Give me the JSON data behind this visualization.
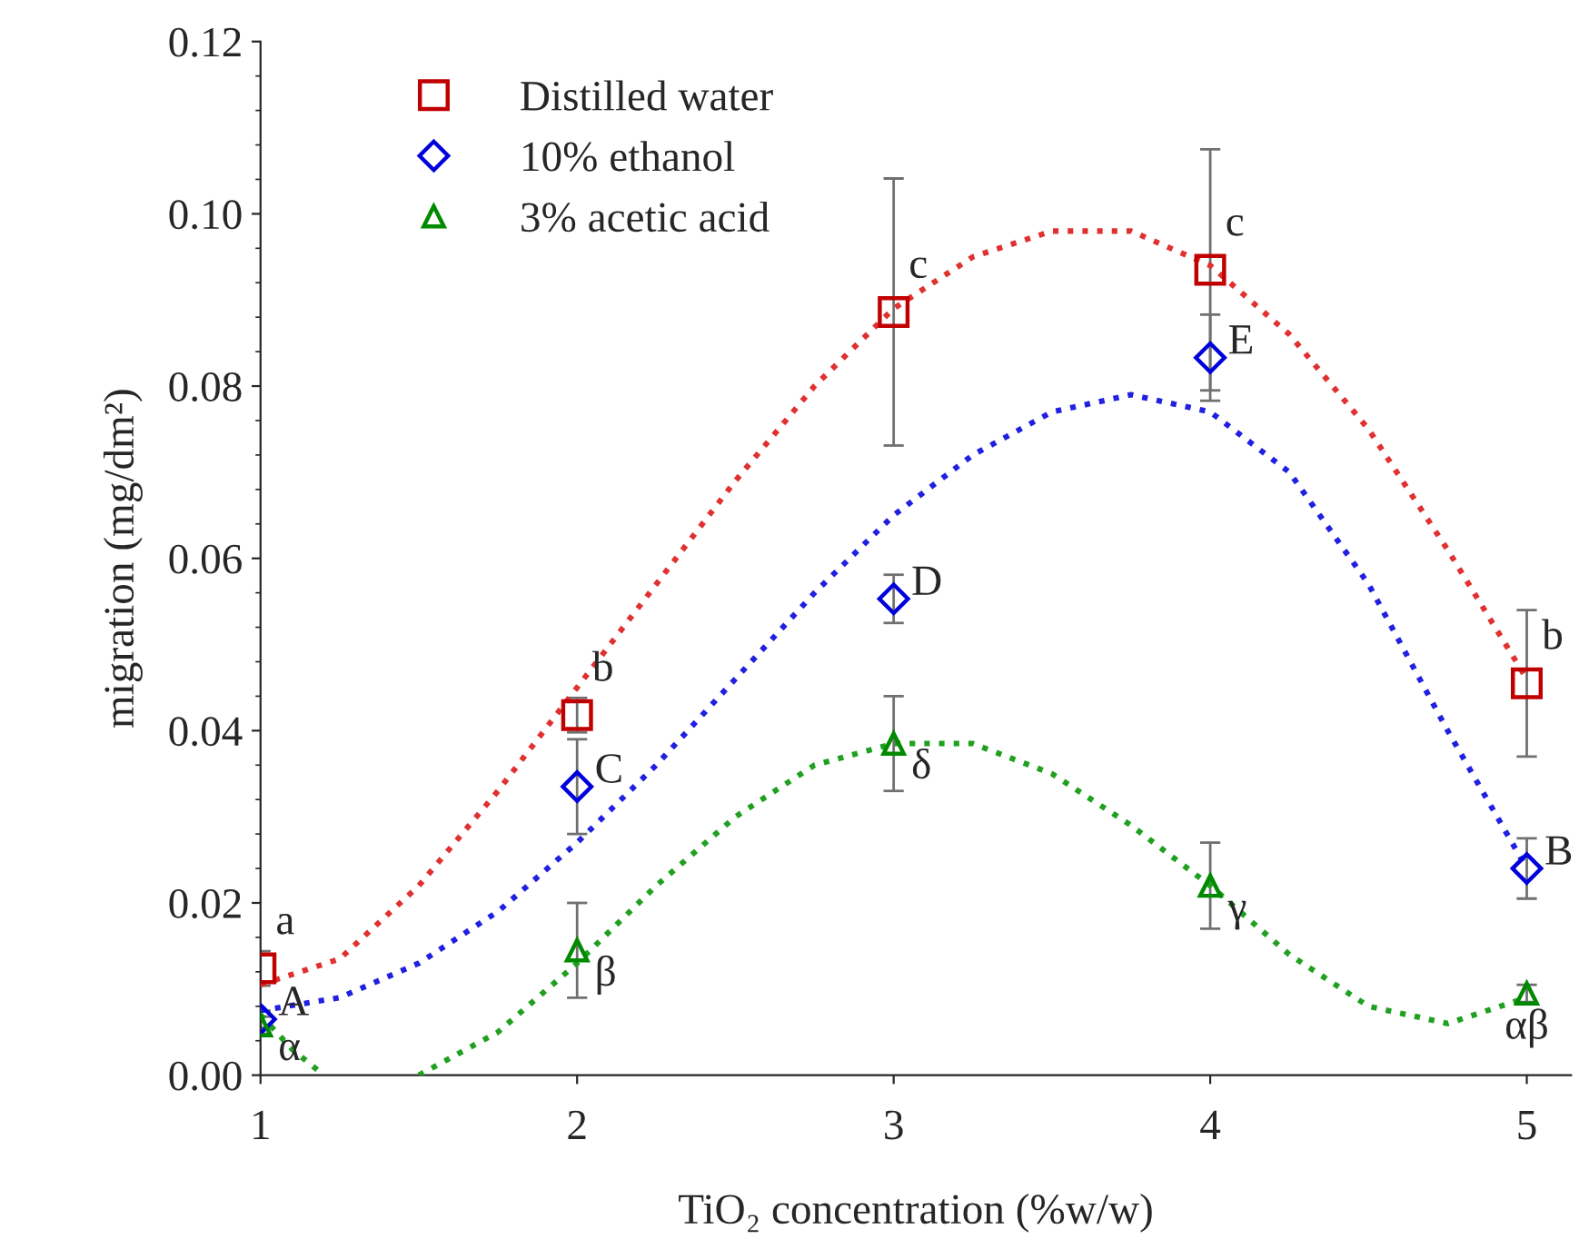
{
  "chart_data": {
    "type": "scatter",
    "xlabel": "TiO₂ concentration (%w/w)",
    "ylabel": "migration (mg/dm²)",
    "x": [
      1,
      2,
      3,
      4,
      5
    ],
    "xlim": [
      1,
      5.14
    ],
    "xticks": [
      1,
      2,
      3,
      4,
      5
    ],
    "ylim": [
      0,
      0.12
    ],
    "yticks": [
      {
        "value": 0,
        "label": "0.00"
      },
      {
        "value": 0.02,
        "label": "0.02"
      },
      {
        "value": 0.04,
        "label": "0.04"
      },
      {
        "value": 0.06,
        "label": "0.06"
      },
      {
        "value": 0.08,
        "label": "0.08"
      },
      {
        "value": 0.1,
        "label": "0.10"
      },
      {
        "value": 0.12,
        "label": "0.12"
      }
    ],
    "grid": false,
    "legend": "top left",
    "series": [
      {
        "name": "Distilled water",
        "color": "#c00000",
        "marker": "square",
        "values": [
          0.0124,
          0.0418,
          0.0886,
          0.0935,
          0.0455
        ],
        "errors": [
          0.002,
          0.002,
          0.0155,
          0.014,
          0.0085
        ]
      },
      {
        "name": "10% ethanol",
        "color": "#0000dd",
        "marker": "diamond",
        "values": [
          0.0065,
          0.0335,
          0.0553,
          0.0833,
          0.024
        ],
        "errors": [
          0.001,
          0.0055,
          0.0028,
          0.005,
          0.0035
        ]
      },
      {
        "name": "3% acetic acid",
        "color": "#008a00",
        "marker": "triangle",
        "values": [
          0.0058,
          0.0145,
          0.0385,
          0.022,
          0.0095
        ],
        "errors": [
          0.001,
          0.0055,
          0.0055,
          0.005,
          0.001
        ]
      },
      {
        "type": "line",
        "color": "#e03030",
        "marker": "none",
        "line_style": "dotted",
        "x": [
          1,
          1.25,
          1.5,
          1.75,
          2,
          2.25,
          2.5,
          2.75,
          3,
          3.25,
          3.5,
          3.75,
          4,
          4.25,
          4.5,
          4.75,
          5
        ],
        "values": [
          0.0105,
          0.0135,
          0.022,
          0.033,
          0.045,
          0.057,
          0.069,
          0.08,
          0.089,
          0.095,
          0.098,
          0.098,
          0.094,
          0.086,
          0.075,
          0.061,
          0.046
        ]
      },
      {
        "type": "line",
        "color": "#2020e0",
        "marker": "none",
        "line_style": "dotted",
        "x": [
          1,
          1.25,
          1.5,
          1.75,
          2,
          2.25,
          2.5,
          2.75,
          3,
          3.25,
          3.5,
          3.75,
          4,
          4.25,
          4.5,
          4.75,
          5
        ],
        "values": [
          0.0075,
          0.009,
          0.013,
          0.019,
          0.027,
          0.036,
          0.046,
          0.056,
          0.065,
          0.072,
          0.077,
          0.079,
          0.077,
          0.07,
          0.057,
          0.04,
          0.024
        ]
      },
      {
        "type": "line",
        "color": "#20a020",
        "marker": "none",
        "line_style": "dotted",
        "x": [
          1,
          1.1,
          1.2,
          1.35,
          1.5,
          1.75,
          2,
          2.25,
          2.5,
          2.75,
          3,
          3.25,
          3.5,
          3.75,
          4,
          4.25,
          4.5,
          4.75,
          5
        ],
        "values": [
          0.007,
          0.003,
          0.0,
          null,
          0.0,
          0.005,
          0.013,
          0.022,
          0.03,
          0.036,
          0.0385,
          0.0385,
          0.035,
          0.029,
          0.022,
          0.014,
          0.008,
          0.006,
          0.009
        ]
      }
    ],
    "annotations": [
      {
        "text": "a",
        "x": 1,
        "y": 0.0124
      },
      {
        "text": "A",
        "x": 1,
        "y": 0.0065
      },
      {
        "text": "α",
        "x": 1,
        "y": 0.0058
      },
      {
        "text": "b",
        "x": 2,
        "y": 0.0418
      },
      {
        "text": "C",
        "x": 2,
        "y": 0.0335
      },
      {
        "text": "β",
        "x": 2,
        "y": 0.0145
      },
      {
        "text": "c",
        "x": 3,
        "y": 0.0886
      },
      {
        "text": "D",
        "x": 3,
        "y": 0.0553
      },
      {
        "text": "δ",
        "x": 3,
        "y": 0.0385
      },
      {
        "text": "c",
        "x": 4,
        "y": 0.0935
      },
      {
        "text": "E",
        "x": 4,
        "y": 0.0833
      },
      {
        "text": "γ",
        "x": 4,
        "y": 0.022
      },
      {
        "text": "b",
        "x": 5,
        "y": 0.0455
      },
      {
        "text": "B",
        "x": 5,
        "y": 0.024
      },
      {
        "text": "αβ",
        "x": 5,
        "y": 0.0095
      }
    ]
  }
}
